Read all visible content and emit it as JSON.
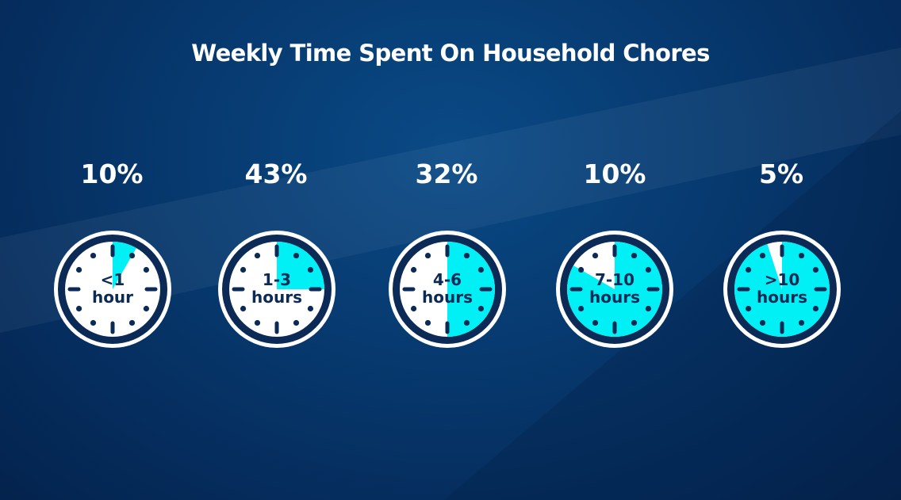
{
  "title": "Weekly Time Spent On Household Chores",
  "colors": {
    "accent": "#00f0f5",
    "face": "#ffffff",
    "ink": "#0b2a55"
  },
  "chart_data": {
    "type": "pie",
    "title": "Weekly Time Spent On Household Chores",
    "categories": [
      "<1 hour",
      "1-3 hours",
      "4-6 hours",
      "7-10 hours",
      ">10 hours"
    ],
    "values": [
      10,
      43,
      32,
      10,
      5
    ],
    "value_labels": [
      "10%",
      "43%",
      "32%",
      "10%",
      "5%"
    ],
    "clock_labels": [
      [
        "<1",
        "hour"
      ],
      [
        "1-3",
        "hours"
      ],
      [
        "4-6",
        "hours"
      ],
      [
        "7-10",
        "hours"
      ],
      [
        ">10",
        "hours"
      ]
    ],
    "clock_fill_fractions": [
      0.083,
      0.25,
      0.5,
      0.833,
      0.95
    ]
  }
}
